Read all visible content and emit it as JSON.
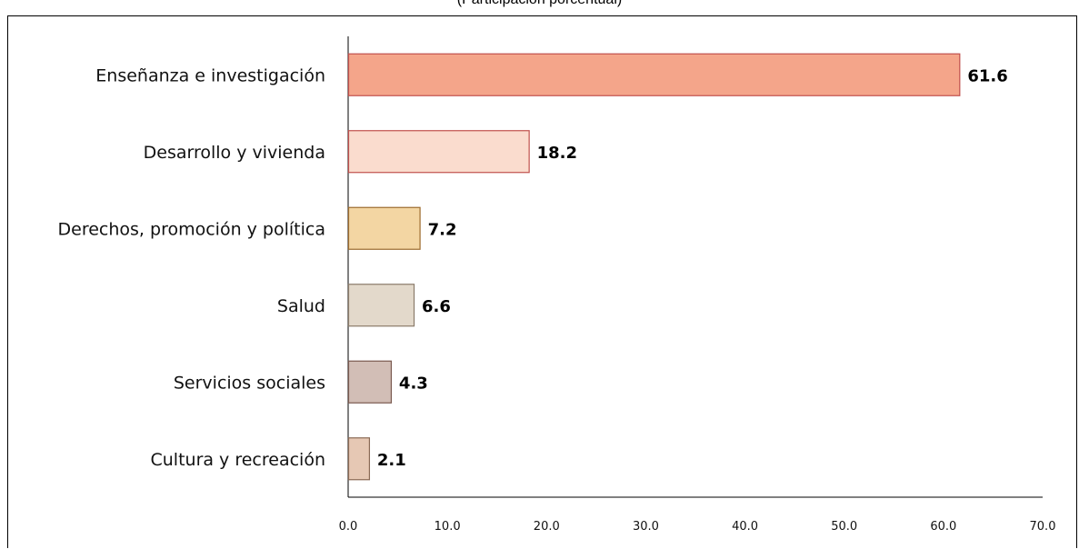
{
  "chart_data": {
    "type": "bar",
    "orientation": "horizontal",
    "subtitle": "(Participación porcentual)",
    "categories": [
      "Enseñanza e investigación",
      "Desarrollo y vivienda",
      "Derechos, promoción y política",
      "Salud",
      "Servicios sociales",
      "Cultura y recreación"
    ],
    "values": [
      61.6,
      18.2,
      7.2,
      6.6,
      4.3,
      2.1
    ],
    "value_labels": [
      "61.6",
      "18.2",
      "7.2",
      "6.6",
      "4.3",
      "2.1"
    ],
    "xlim": [
      0,
      70
    ],
    "x_ticks": [
      "0.0",
      "10.0",
      "20.0",
      "30.0",
      "40.0",
      "50.0",
      "60.0",
      "70.0"
    ],
    "grid": false,
    "legend": "none",
    "colors": {
      "fills": [
        "#F4A58A",
        "#FADCCE",
        "#F3D6A3",
        "#E3D9CB",
        "#D2BEB6",
        "#E6C8B4"
      ],
      "strokes": [
        "#C0504D",
        "#C0504D",
        "#9C6B2E",
        "#8A7B6A",
        "#7A5A50",
        "#8A6A55"
      ]
    }
  }
}
